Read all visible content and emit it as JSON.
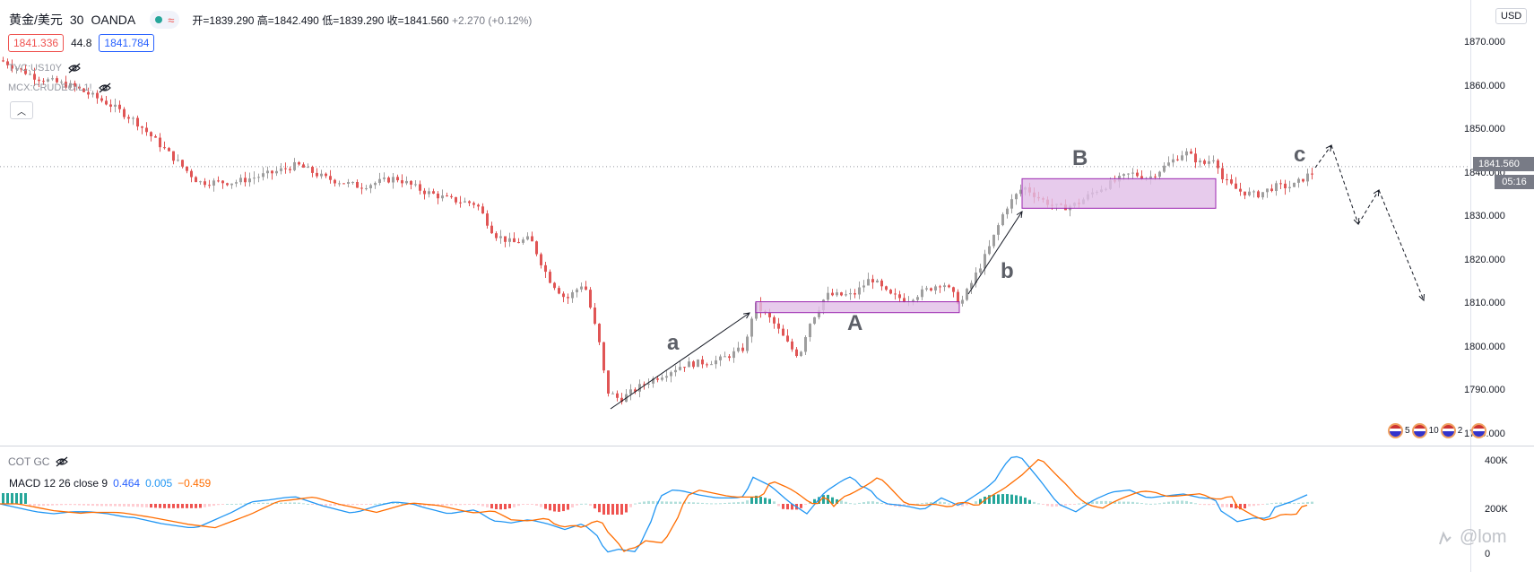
{
  "symbol": {
    "name": "黄金/美元",
    "interval": "30",
    "exchange": "OANDA",
    "ohlc": "开=1839.290 高=1842.490 低=1839.290 收=1841.560",
    "change": "+2.270 (+0.12%)"
  },
  "quotes": {
    "bid": "1841.336",
    "spread": "44.8",
    "ask": "1841.784"
  },
  "indicators": {
    "us10y": "TVC:US10Y",
    "crude": "MCX:CRUDEOIL1!",
    "cot": "COT GC",
    "macd_name": "MACD 12 26 close 9",
    "macd_v1": "0.464",
    "macd_v2": "0.005",
    "macd_v3": "−0.459"
  },
  "axis": {
    "currency": "USD",
    "price_ticks": [
      "1870.000",
      "1860.000",
      "1850.000",
      "1840.000",
      "1830.000",
      "1820.000",
      "1810.000",
      "1800.000",
      "1790.000",
      "1780.000"
    ],
    "current_price": "1841.560",
    "timer": "05:16",
    "macd_ticks": [
      "400K",
      "200K",
      "0"
    ]
  },
  "annotations": {
    "a": "a",
    "A": "A",
    "b": "b",
    "B": "B",
    "c": "c"
  },
  "flags": {
    "count1": "5",
    "count2": "10",
    "count3": "2"
  },
  "watermark": "@lom",
  "colors": {
    "up": "#26a69a",
    "down": "#ef5350",
    "candle_up": "#9e9e9e",
    "candle_down": "#e05555",
    "box": "#e1bee7",
    "macd": "#2196f3",
    "signal": "#ff6d00"
  },
  "icons": [
    "eye-off-icon",
    "collapse-icon",
    "share-icon",
    "us-flag-icon"
  ]
}
